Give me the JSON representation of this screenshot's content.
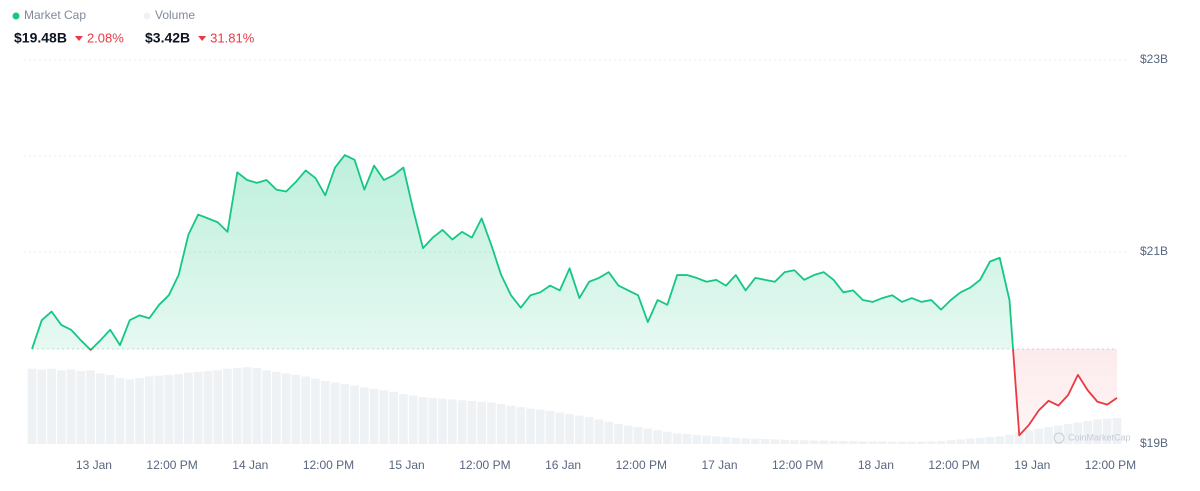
{
  "chart_data": {
    "type": "area",
    "summary": [
      {
        "name": "Market Cap",
        "color": "#16c784",
        "value": 19.48,
        "value_label": "$19.48B",
        "change": -2.08,
        "change_label": "2.08%"
      },
      {
        "name": "Volume",
        "color": "#eff2f5",
        "value": 3.42,
        "value_label": "$3.42B",
        "change": -31.81,
        "change_label": "31.81%"
      }
    ],
    "watermark": "CoinMarketCap",
    "x": [
      -9.5,
      -8,
      -6.5,
      -5,
      -3.5,
      -2,
      -0.5,
      1,
      2.5,
      4,
      5.5,
      7,
      8.5,
      10,
      11.5,
      13,
      14.5,
      16,
      17.5,
      19,
      20.5,
      22,
      23.5,
      25,
      26.5,
      28,
      29.5,
      31,
      32.5,
      34,
      35.5,
      37,
      38.5,
      40,
      41.5,
      43,
      44.5,
      46,
      47.5,
      49,
      50.5,
      52,
      53.5,
      55,
      56.5,
      58,
      59.5,
      61,
      62.5,
      64,
      65.5,
      67,
      68.5,
      70,
      71.5,
      73,
      74.5,
      76,
      77.5,
      79,
      80.5,
      82,
      83.5,
      85,
      86.5,
      88,
      89.5,
      91,
      92.5,
      94,
      95.5,
      97,
      98.5,
      100,
      101.5,
      103,
      104.5,
      106,
      107.5,
      109,
      110.5,
      112,
      113.5,
      115,
      116.5,
      118,
      119.5,
      121,
      122.5,
      124,
      125.5,
      127,
      128.5,
      130,
      131.5,
      133,
      134.5,
      136,
      137.5,
      139,
      140.5,
      142,
      143.5,
      145,
      146.5,
      148,
      149.5,
      151,
      152.5,
      154,
      155.5,
      157
    ],
    "series": [
      {
        "name": "Market Cap",
        "color": "#16c784",
        "color_down": "#ea3943",
        "values": [
          19.99,
          20.29,
          20.38,
          20.24,
          20.19,
          20.08,
          19.98,
          20.08,
          20.19,
          20.03,
          20.29,
          20.34,
          20.31,
          20.45,
          20.55,
          20.76,
          21.18,
          21.39,
          21.35,
          21.31,
          21.21,
          21.83,
          21.75,
          21.72,
          21.75,
          21.65,
          21.63,
          21.73,
          21.85,
          21.77,
          21.59,
          21.88,
          22.01,
          21.96,
          21.65,
          21.9,
          21.75,
          21.8,
          21.88,
          21.44,
          21.04,
          21.15,
          21.23,
          21.13,
          21.21,
          21.15,
          21.35,
          21.07,
          20.76,
          20.55,
          20.42,
          20.55,
          20.58,
          20.65,
          20.6,
          20.83,
          20.52,
          20.69,
          20.73,
          20.79,
          20.65,
          20.6,
          20.55,
          20.27,
          20.5,
          20.45,
          20.76,
          20.76,
          20.73,
          20.69,
          20.71,
          20.65,
          20.76,
          20.6,
          20.73,
          20.71,
          20.69,
          20.79,
          20.81,
          20.71,
          20.76,
          20.79,
          20.71,
          20.58,
          20.6,
          20.5,
          20.48,
          20.52,
          20.55,
          20.48,
          20.52,
          20.48,
          20.5,
          20.4,
          20.5,
          20.58,
          20.63,
          20.71,
          20.9,
          20.94,
          20.5,
          19.09,
          19.2,
          19.35,
          19.45,
          19.4,
          19.51,
          19.72,
          19.56,
          19.44,
          19.41,
          19.48
        ]
      },
      {
        "name": "Volume",
        "color": "#eff2f5",
        "axis": "y2",
        "values": [
          9.8,
          9.7,
          9.8,
          9.6,
          9.7,
          9.5,
          9.6,
          9.2,
          9.0,
          8.6,
          8.4,
          8.6,
          8.8,
          8.9,
          9.0,
          9.1,
          9.3,
          9.4,
          9.5,
          9.6,
          9.8,
          9.9,
          10.0,
          9.9,
          9.6,
          9.4,
          9.2,
          9.0,
          8.8,
          8.5,
          8.2,
          8.0,
          7.8,
          7.6,
          7.4,
          7.2,
          7.0,
          6.8,
          6.5,
          6.3,
          6.1,
          6.0,
          5.9,
          5.8,
          5.7,
          5.6,
          5.5,
          5.4,
          5.2,
          5.0,
          4.8,
          4.6,
          4.5,
          4.3,
          4.1,
          3.9,
          3.7,
          3.5,
          3.2,
          2.9,
          2.6,
          2.4,
          2.2,
          2.0,
          1.8,
          1.6,
          1.4,
          1.3,
          1.2,
          1.1,
          1.0,
          0.9,
          0.8,
          0.75,
          0.7,
          0.65,
          0.6,
          0.55,
          0.5,
          0.5,
          0.45,
          0.45,
          0.4,
          0.4,
          0.4,
          0.35,
          0.35,
          0.35,
          0.3,
          0.3,
          0.3,
          0.3,
          0.35,
          0.4,
          0.5,
          0.6,
          0.7,
          0.8,
          0.9,
          1.0,
          1.2,
          1.5,
          1.8,
          2.0,
          2.2,
          2.4,
          2.6,
          2.8,
          3.0,
          3.2,
          3.3,
          3.4
        ]
      }
    ],
    "baseline": 19.99,
    "xlim": [
      -9.5,
      157
    ],
    "xticks": [
      {
        "value": 0,
        "label": "13 Jan"
      },
      {
        "value": 12,
        "label": "12:00 PM"
      },
      {
        "value": 24,
        "label": "14 Jan"
      },
      {
        "value": 36,
        "label": "12:00 PM"
      },
      {
        "value": 48,
        "label": "15 Jan"
      },
      {
        "value": 60,
        "label": "12:00 PM"
      },
      {
        "value": 72,
        "label": "16 Jan"
      },
      {
        "value": 84,
        "label": "12:00 PM"
      },
      {
        "value": 96,
        "label": "17 Jan"
      },
      {
        "value": 108,
        "label": "12:00 PM"
      },
      {
        "value": 120,
        "label": "18 Jan"
      },
      {
        "value": 132,
        "label": "12:00 PM"
      },
      {
        "value": 144,
        "label": "19 Jan"
      },
      {
        "value": 156,
        "label": "12:00 PM"
      }
    ],
    "ylim": [
      19,
      23
    ],
    "yticks": [
      {
        "value": 19,
        "label": "$19B"
      },
      {
        "value": 21,
        "label": "$21B"
      },
      {
        "value": 23,
        "label": "$23B"
      }
    ],
    "y_gridlines": [
      21,
      22,
      23
    ],
    "y2lim": [
      0,
      50
    ],
    "grid": true
  }
}
